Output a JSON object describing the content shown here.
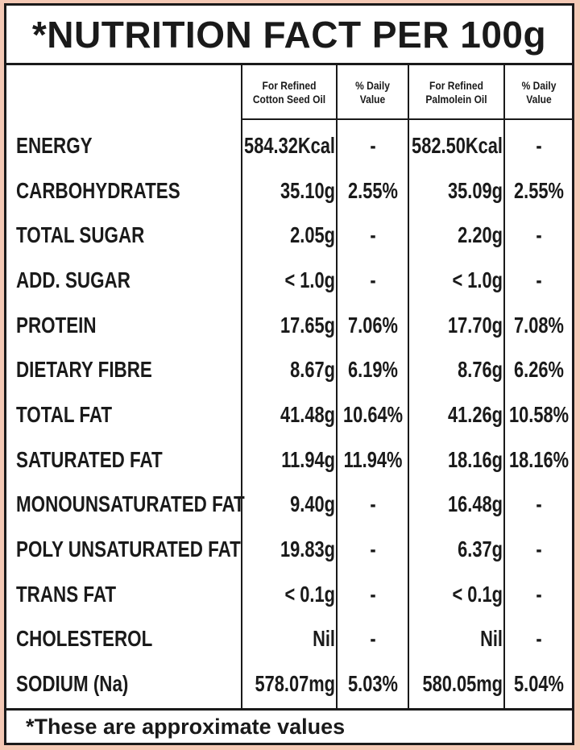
{
  "title": "*NUTRITION FACT PER 100g",
  "columns": [
    {
      "line1": "For Refined",
      "line2": "Cotton Seed Oil"
    },
    {
      "line1": "% Daily",
      "line2": "Value"
    },
    {
      "line1": "For Refined",
      "line2": "Palmolein Oil"
    },
    {
      "line1": "% Daily",
      "line2": "Value"
    }
  ],
  "rows": [
    {
      "label": "ENERGY",
      "cotton": "584.32Kcal",
      "cotton_dv": "-",
      "palm": "582.50Kcal",
      "palm_dv": "-"
    },
    {
      "label": "CARBOHYDRATES",
      "cotton": "35.10g",
      "cotton_dv": "2.55%",
      "palm": "35.09g",
      "palm_dv": "2.55%"
    },
    {
      "label": "TOTAL SUGAR",
      "cotton": "2.05g",
      "cotton_dv": "-",
      "palm": "2.20g",
      "palm_dv": "-"
    },
    {
      "label": "ADD. SUGAR",
      "cotton": "< 1.0g",
      "cotton_dv": "-",
      "palm": "< 1.0g",
      "palm_dv": "-"
    },
    {
      "label": "PROTEIN",
      "cotton": "17.65g",
      "cotton_dv": "7.06%",
      "palm": "17.70g",
      "palm_dv": "7.08%"
    },
    {
      "label": "DIETARY FIBRE",
      "cotton": "8.67g",
      "cotton_dv": "6.19%",
      "palm": "8.76g",
      "palm_dv": "6.26%"
    },
    {
      "label": "TOTAL FAT",
      "cotton": "41.48g",
      "cotton_dv": "10.64%",
      "palm": "41.26g",
      "palm_dv": "10.58%"
    },
    {
      "label": "SATURATED FAT",
      "cotton": "11.94g",
      "cotton_dv": "11.94%",
      "palm": "18.16g",
      "palm_dv": "18.16%"
    },
    {
      "label": "MONOUNSATURATED FAT",
      "cotton": "9.40g",
      "cotton_dv": "-",
      "palm": "16.48g",
      "palm_dv": "-"
    },
    {
      "label": "POLY UNSATURATED FAT",
      "cotton": "19.83g",
      "cotton_dv": "-",
      "palm": "6.37g",
      "palm_dv": "-"
    },
    {
      "label": "TRANS FAT",
      "cotton": "< 0.1g",
      "cotton_dv": "-",
      "palm": "< 0.1g",
      "palm_dv": "-"
    },
    {
      "label": "CHOLESTEROL",
      "cotton": "Nil",
      "cotton_dv": "-",
      "palm": "Nil",
      "palm_dv": "-"
    },
    {
      "label": "SODIUM (Na)",
      "cotton": "578.07mg",
      "cotton_dv": "5.03%",
      "palm": "580.05mg",
      "palm_dv": "5.04%"
    }
  ],
  "footer": "*These are approximate values",
  "colors": {
    "background": "#f4c9b5",
    "ink": "#1a1a1a",
    "panel": "#ffffff"
  }
}
